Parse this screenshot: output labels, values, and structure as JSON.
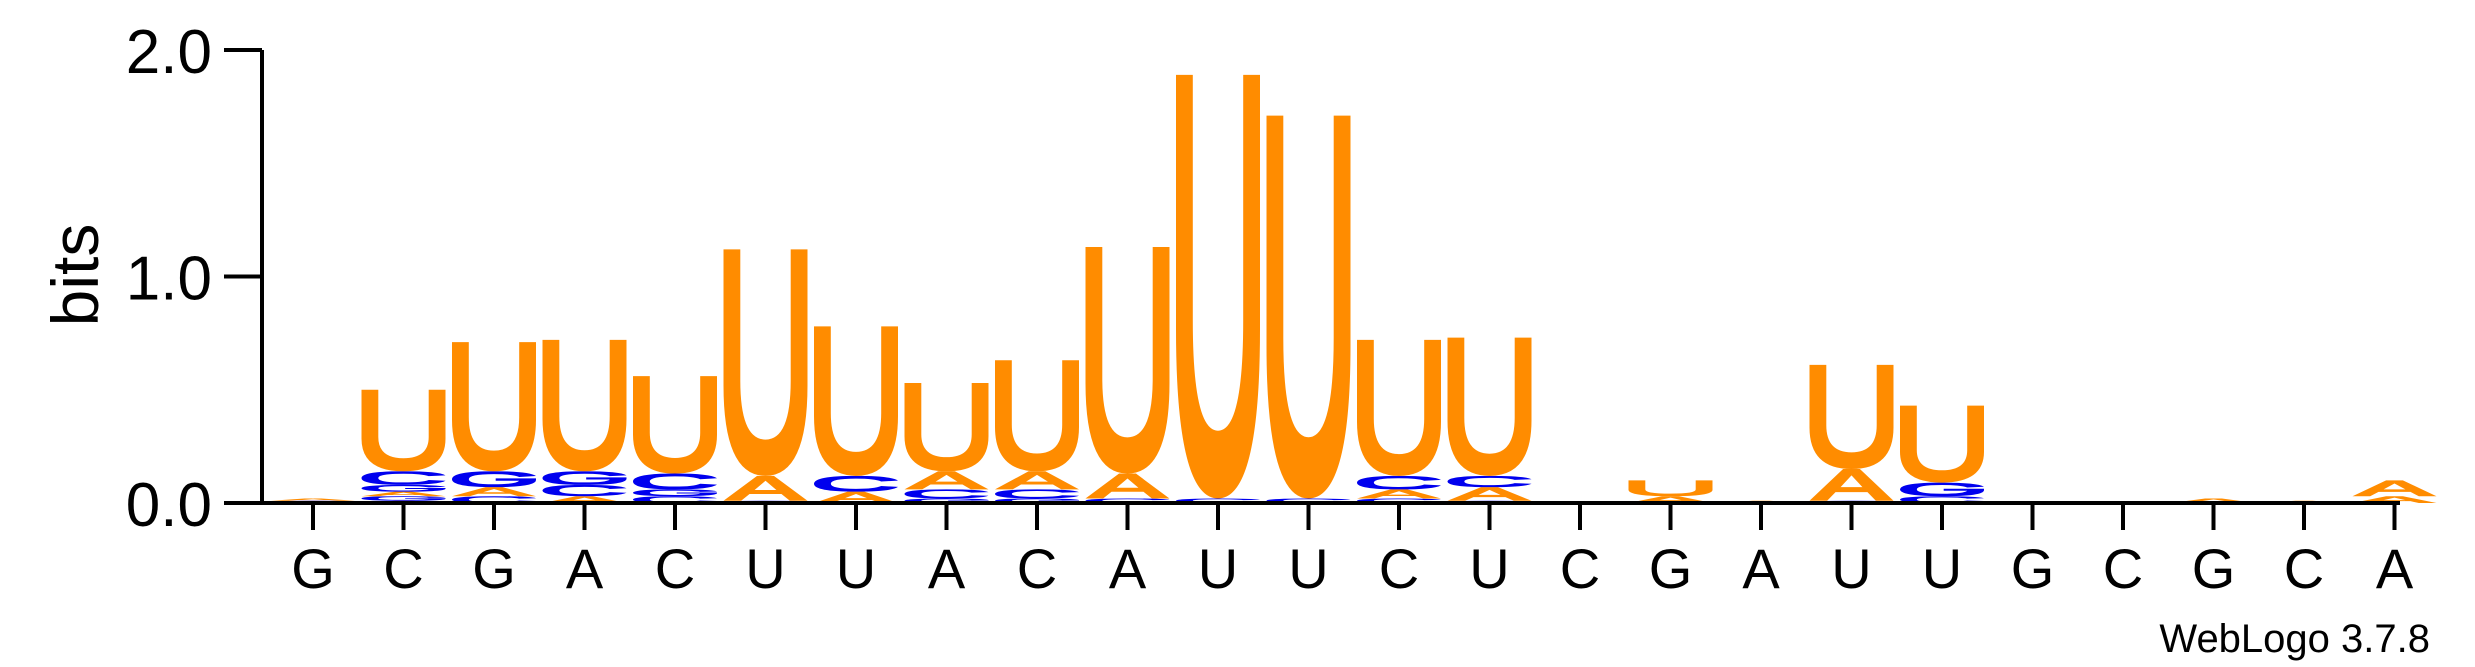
{
  "chart_data": {
    "type": "sequence-logo",
    "ylabel": "bits",
    "ylim": [
      0,
      2.0
    ],
    "yticks": [
      {
        "value": 0.0,
        "label": "0.0"
      },
      {
        "value": 1.0,
        "label": "1.0"
      },
      {
        "value": 2.0,
        "label": "2.0"
      }
    ],
    "x_labels": [
      "G",
      "C",
      "G",
      "A",
      "C",
      "U",
      "U",
      "A",
      "C",
      "A",
      "U",
      "U",
      "C",
      "U",
      "C",
      "G",
      "A",
      "U",
      "U",
      "G",
      "C",
      "G",
      "C",
      "A"
    ],
    "colors": {
      "U": "#ff8c00",
      "A": "#ff8c00",
      "C": "#0000ee",
      "G": "#0000ee"
    },
    "positions": [
      {
        "pos": 1,
        "stack": [
          {
            "l": "G",
            "h": 0.01
          },
          {
            "l": "A",
            "h": 0.01
          }
        ]
      },
      {
        "pos": 2,
        "stack": [
          {
            "l": "A",
            "h": 0.01
          },
          {
            "l": "G",
            "h": 0.02
          },
          {
            "l": "A",
            "h": 0.02
          },
          {
            "l": "G",
            "h": 0.03
          },
          {
            "l": "C",
            "h": 0.06
          },
          {
            "l": "U",
            "h": 0.36
          }
        ]
      },
      {
        "pos": 3,
        "stack": [
          {
            "l": "C",
            "h": 0.03
          },
          {
            "l": "A",
            "h": 0.04
          },
          {
            "l": "G",
            "h": 0.07
          },
          {
            "l": "U",
            "h": 0.57
          }
        ]
      },
      {
        "pos": 4,
        "stack": [
          {
            "l": "A",
            "h": 0.03
          },
          {
            "l": "C",
            "h": 0.05
          },
          {
            "l": "G",
            "h": 0.06
          },
          {
            "l": "U",
            "h": 0.58
          }
        ]
      },
      {
        "pos": 5,
        "stack": [
          {
            "l": "C",
            "h": 0.03
          },
          {
            "l": "G",
            "h": 0.03
          },
          {
            "l": "C",
            "h": 0.07
          },
          {
            "l": "U",
            "h": 0.43
          }
        ]
      },
      {
        "pos": 6,
        "stack": [
          {
            "l": "G",
            "h": 0.01
          },
          {
            "l": "A",
            "h": 0.11
          },
          {
            "l": "U",
            "h": 1.0
          }
        ]
      },
      {
        "pos": 7,
        "stack": [
          {
            "l": "A",
            "h": 0.05
          },
          {
            "l": "C",
            "h": 0.07
          },
          {
            "l": "U",
            "h": 0.66
          }
        ]
      },
      {
        "pos": 8,
        "stack": [
          {
            "l": "G",
            "h": 0.02
          },
          {
            "l": "C",
            "h": 0.04
          },
          {
            "l": "A",
            "h": 0.08
          },
          {
            "l": "U",
            "h": 0.39
          }
        ]
      },
      {
        "pos": 9,
        "stack": [
          {
            "l": "G",
            "h": 0.02
          },
          {
            "l": "C",
            "h": 0.04
          },
          {
            "l": "A",
            "h": 0.08
          },
          {
            "l": "U",
            "h": 0.49
          }
        ]
      },
      {
        "pos": 10,
        "stack": [
          {
            "l": "C",
            "h": 0.02
          },
          {
            "l": "A",
            "h": 0.11
          },
          {
            "l": "U",
            "h": 1.0
          }
        ]
      },
      {
        "pos": 11,
        "stack": [
          {
            "l": "C",
            "h": 0.02
          },
          {
            "l": "U",
            "h": 1.87
          }
        ]
      },
      {
        "pos": 12,
        "stack": [
          {
            "l": "C",
            "h": 0.02
          },
          {
            "l": "U",
            "h": 1.69
          }
        ]
      },
      {
        "pos": 13,
        "stack": [
          {
            "l": "C",
            "h": 0.02
          },
          {
            "l": "A",
            "h": 0.04
          },
          {
            "l": "C",
            "h": 0.06
          },
          {
            "l": "U",
            "h": 0.6
          }
        ]
      },
      {
        "pos": 14,
        "stack": [
          {
            "l": "C",
            "h": 0.01
          },
          {
            "l": "A",
            "h": 0.06
          },
          {
            "l": "C",
            "h": 0.05
          },
          {
            "l": "U",
            "h": 0.61
          }
        ]
      },
      {
        "pos": 15,
        "stack": []
      },
      {
        "pos": 16,
        "stack": [
          {
            "l": "A",
            "h": 0.03
          },
          {
            "l": "U",
            "h": 0.07
          }
        ]
      },
      {
        "pos": 17,
        "stack": [
          {
            "l": "A",
            "h": 0.01
          }
        ]
      },
      {
        "pos": 18,
        "stack": [
          {
            "l": "C",
            "h": 0.01
          },
          {
            "l": "A",
            "h": 0.14
          },
          {
            "l": "U",
            "h": 0.46
          }
        ]
      },
      {
        "pos": 19,
        "stack": [
          {
            "l": "C",
            "h": 0.03
          },
          {
            "l": "G",
            "h": 0.06
          },
          {
            "l": "U",
            "h": 0.34
          }
        ]
      },
      {
        "pos": 20,
        "stack": []
      },
      {
        "pos": 21,
        "stack": []
      },
      {
        "pos": 22,
        "stack": [
          {
            "l": "A",
            "h": 0.02
          }
        ]
      },
      {
        "pos": 23,
        "stack": [
          {
            "l": "A",
            "h": 0.01
          }
        ]
      },
      {
        "pos": 24,
        "stack": [
          {
            "l": "A",
            "h": 0.03
          },
          {
            "l": "A",
            "h": 0.07
          }
        ]
      }
    ]
  },
  "footer": {
    "credit": "WebLogo 3.7.8"
  }
}
